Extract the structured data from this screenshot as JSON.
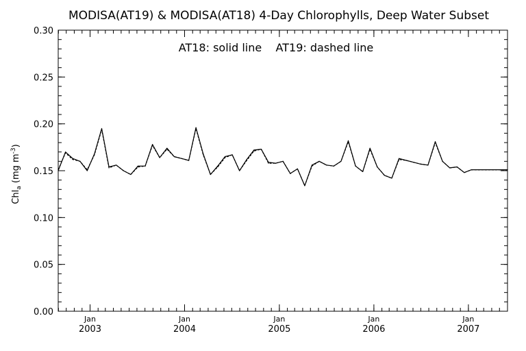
{
  "chart_data": {
    "type": "line",
    "title": "MODISA(AT19) & MODISA(AT18) 4-Day Chlorophylls, Deep Water Subset",
    "annotation": "AT18: solid line    AT19: dashed line",
    "ylabel_main": "Chl",
    "ylabel_sub": "a",
    "ylabel_units": "(mg m",
    "ylabel_exp": "-3",
    "ylabel_close": ")",
    "xlabel": "",
    "ylim": [
      0.0,
      0.3
    ],
    "yticks": [
      "0.00",
      "0.05",
      "0.10",
      "0.15",
      "0.20",
      "0.25",
      "0.30"
    ],
    "xlim": [
      "2002-08-31",
      "2007-06-01"
    ],
    "xticks": [
      {
        "month": "Jan",
        "year": "2003",
        "date": "2003-01-01"
      },
      {
        "month": "Jan",
        "year": "2004",
        "date": "2004-01-01"
      },
      {
        "month": "Jan",
        "year": "2005",
        "date": "2005-01-01"
      },
      {
        "month": "Jan",
        "year": "2006",
        "date": "2006-01-01"
      },
      {
        "month": "Jan",
        "year": "2007",
        "date": "2007-01-01"
      }
    ],
    "grid": false,
    "legend": "none",
    "series": [
      {
        "name": "AT18",
        "style": "solid",
        "color": "#000000",
        "x": [
          "2002-08-31",
          "2002-09-28",
          "2002-10-26",
          "2002-11-23",
          "2002-12-21",
          "2003-01-18",
          "2003-02-15",
          "2003-03-15",
          "2003-04-12",
          "2003-05-10",
          "2003-06-07",
          "2003-07-05",
          "2003-08-02",
          "2003-08-30",
          "2003-09-27",
          "2003-10-25",
          "2003-11-22",
          "2003-12-20",
          "2004-01-17",
          "2004-02-14",
          "2004-03-13",
          "2004-04-10",
          "2004-05-08",
          "2004-06-05",
          "2004-07-03",
          "2004-07-31",
          "2004-08-28",
          "2004-09-25",
          "2004-10-23",
          "2004-11-20",
          "2004-12-18",
          "2005-01-15",
          "2005-02-12",
          "2005-03-12",
          "2005-04-09",
          "2005-05-07",
          "2005-06-04",
          "2005-07-02",
          "2005-07-30",
          "2005-08-27",
          "2005-09-24",
          "2005-10-22",
          "2005-11-19",
          "2005-12-17",
          "2006-01-14",
          "2006-02-11",
          "2006-03-11",
          "2006-04-08",
          "2006-05-06",
          "2006-06-03",
          "2006-07-01",
          "2006-07-29",
          "2006-08-26",
          "2006-09-23",
          "2006-10-21",
          "2006-11-18",
          "2006-12-16",
          "2007-01-13",
          "2007-02-10",
          "2007-03-10",
          "2007-04-07",
          "2007-05-05",
          "2007-06-01"
        ],
        "values": [
          0.15,
          0.17,
          0.163,
          0.16,
          0.15,
          0.168,
          0.195,
          0.154,
          0.156,
          0.15,
          0.146,
          0.155,
          0.155,
          0.178,
          0.164,
          0.174,
          0.165,
          0.163,
          0.161,
          0.196,
          0.168,
          0.146,
          0.155,
          0.165,
          0.167,
          0.15,
          0.162,
          0.172,
          0.173,
          0.159,
          0.158,
          0.16,
          0.147,
          0.152,
          0.134,
          0.156,
          0.16,
          0.156,
          0.155,
          0.16,
          0.182,
          0.155,
          0.149,
          0.174,
          0.154,
          0.145,
          0.142,
          0.163,
          0.161,
          0.159,
          0.157,
          0.156,
          0.181,
          0.16,
          0.153,
          0.154,
          0.148,
          0.151,
          0.151,
          0.151,
          0.151,
          0.151,
          0.151
        ]
      },
      {
        "name": "AT19",
        "style": "dashed",
        "color": "#000000",
        "x": [
          "2002-08-31",
          "2002-09-28",
          "2002-10-26",
          "2002-11-23",
          "2002-12-21",
          "2003-01-18",
          "2003-02-15",
          "2003-03-15",
          "2003-04-12",
          "2003-05-10",
          "2003-06-07",
          "2003-07-05",
          "2003-08-02",
          "2003-08-30",
          "2003-09-27",
          "2003-10-25",
          "2003-11-22",
          "2003-12-20",
          "2004-01-17",
          "2004-02-14",
          "2004-03-13",
          "2004-04-10",
          "2004-05-08",
          "2004-06-05",
          "2004-07-03",
          "2004-07-31",
          "2004-08-28",
          "2004-09-25",
          "2004-10-23",
          "2004-11-20",
          "2004-12-18",
          "2005-01-15",
          "2005-02-12",
          "2005-03-12",
          "2005-04-09",
          "2005-05-07",
          "2005-06-04",
          "2005-07-02",
          "2005-07-30",
          "2005-08-27",
          "2005-09-24",
          "2005-10-22",
          "2005-11-19",
          "2005-12-17",
          "2006-01-14",
          "2006-02-11",
          "2006-03-11",
          "2006-04-08",
          "2006-05-06",
          "2006-06-03",
          "2006-07-01",
          "2006-07-29",
          "2006-08-26",
          "2006-09-23",
          "2006-10-21",
          "2006-11-18",
          "2006-12-16",
          "2007-01-13",
          "2007-02-10",
          "2007-03-10",
          "2007-04-07",
          "2007-05-05",
          "2007-06-01"
        ],
        "values": [
          0.151,
          0.169,
          0.162,
          0.16,
          0.151,
          0.167,
          0.194,
          0.153,
          0.156,
          0.15,
          0.146,
          0.154,
          0.155,
          0.177,
          0.164,
          0.173,
          0.165,
          0.163,
          0.161,
          0.195,
          0.167,
          0.146,
          0.154,
          0.164,
          0.167,
          0.15,
          0.161,
          0.171,
          0.173,
          0.158,
          0.158,
          0.16,
          0.147,
          0.152,
          0.134,
          0.155,
          0.16,
          0.156,
          0.155,
          0.16,
          0.181,
          0.155,
          0.149,
          0.173,
          0.154,
          0.145,
          0.142,
          0.162,
          0.161,
          0.159,
          0.157,
          0.156,
          0.18,
          0.16,
          0.153,
          0.154,
          0.148,
          0.151,
          0.151,
          0.151,
          0.151,
          0.151,
          0.151
        ]
      }
    ]
  }
}
